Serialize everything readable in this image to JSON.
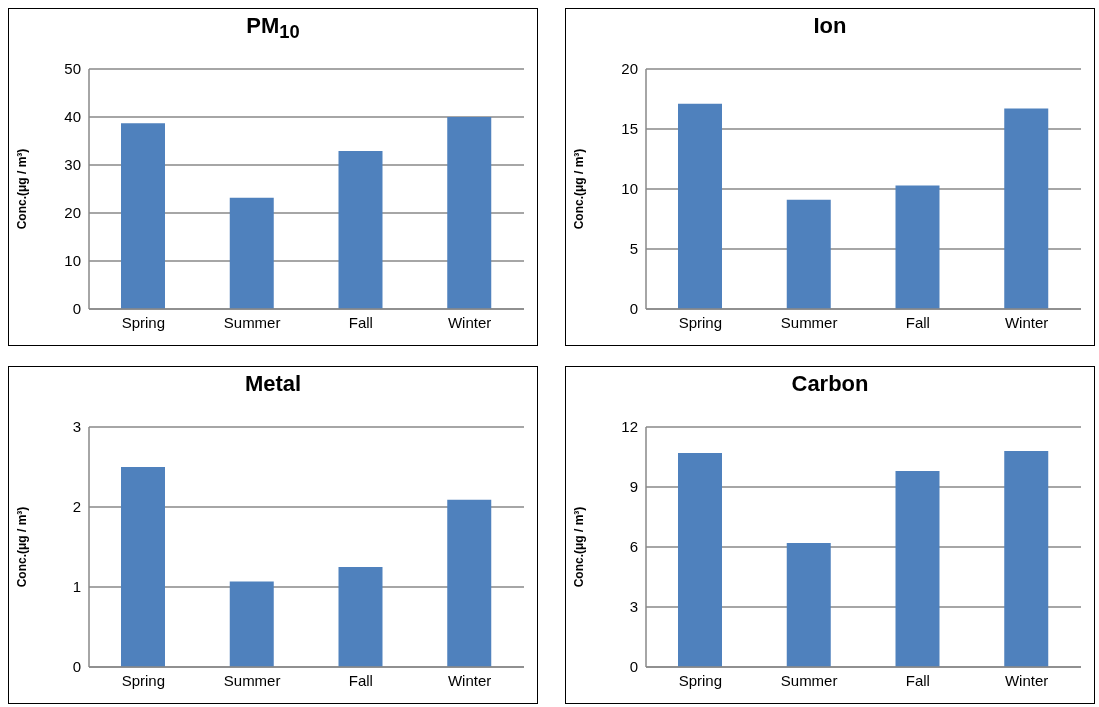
{
  "chart_data": [
    {
      "type": "bar",
      "title": "PM$_{10}$",
      "ylabel": "Conc.(μg / m³)",
      "categories": [
        "Spring",
        "Summer",
        "Fall",
        "Winter"
      ],
      "values": [
        38.7,
        23.2,
        32.9,
        40.0
      ],
      "color": "#4f81bd",
      "ylim": [
        0,
        50
      ],
      "yticks": [
        0,
        10,
        20,
        30,
        40,
        50
      ],
      "grid": "y",
      "legend": false
    },
    {
      "type": "bar",
      "title": "Ion",
      "ylabel": "Conc.(μg / m³)",
      "categories": [
        "Spring",
        "Summer",
        "Fall",
        "Winter"
      ],
      "values": [
        17.1,
        9.1,
        10.3,
        16.7
      ],
      "color": "#4f81bd",
      "ylim": [
        0,
        20
      ],
      "yticks": [
        0,
        5,
        10,
        15,
        20
      ],
      "grid": "y",
      "legend": false
    },
    {
      "type": "bar",
      "title": "Metal",
      "ylabel": "Conc.(μg / m³)",
      "categories": [
        "Spring",
        "Summer",
        "Fall",
        "Winter"
      ],
      "values": [
        2.5,
        1.07,
        1.25,
        2.09
      ],
      "color": "#4f81bd",
      "ylim": [
        0,
        3
      ],
      "yticks": [
        0,
        1,
        2,
        3
      ],
      "grid": "y",
      "legend": false
    },
    {
      "type": "bar",
      "title": "Carbon",
      "ylabel": "Conc.(μg / m³)",
      "categories": [
        "Spring",
        "Summer",
        "Fall",
        "Winter"
      ],
      "values": [
        10.7,
        6.2,
        9.8,
        10.8
      ],
      "color": "#4f81bd",
      "ylim": [
        0,
        12
      ],
      "yticks": [
        0,
        3,
        6,
        9,
        12
      ],
      "grid": "y",
      "legend": false
    }
  ]
}
